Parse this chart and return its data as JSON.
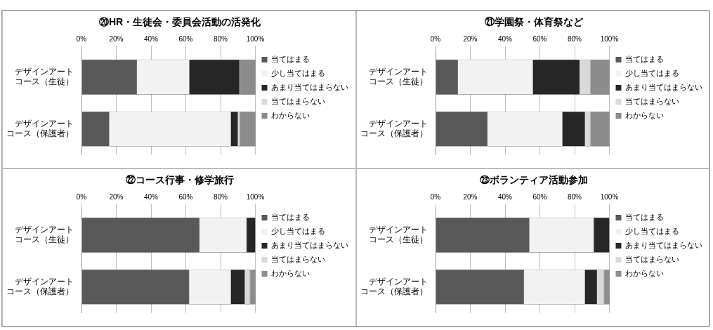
{
  "chart_data": [
    {
      "type": "bar",
      "orientation": "horizontal",
      "stacked": true,
      "title": "⑳HR・生徒会・委員会活動の活発化",
      "categories": [
        "デザインアートコース（生徒）",
        "デザインアートコース（保護者）"
      ],
      "series": [
        {
          "name": "当てはまる",
          "color": "#595959",
          "values": [
            32,
            16
          ]
        },
        {
          "name": "少し当てはまる",
          "color": "#f2f2f2",
          "values": [
            30,
            70
          ]
        },
        {
          "name": "あまり当てはまらない",
          "color": "#262626",
          "values": [
            29,
            4
          ]
        },
        {
          "name": "当てはまらない",
          "color": "#d9d9d9",
          "values": [
            0,
            1
          ]
        },
        {
          "name": "わからない",
          "color": "#8c8c8c",
          "values": [
            9,
            9
          ]
        }
      ],
      "xlim": [
        0,
        100
      ],
      "xticks": [
        {
          "value": 0,
          "label": "0%"
        },
        {
          "value": 20,
          "label": "20%"
        },
        {
          "value": 40,
          "label": "40%"
        },
        {
          "value": 60,
          "label": "60%"
        },
        {
          "value": 80,
          "label": "80%"
        },
        {
          "value": 100,
          "label": "100%"
        }
      ],
      "grid": "x",
      "legend": "right"
    },
    {
      "type": "bar",
      "orientation": "horizontal",
      "stacked": true,
      "title": "㉑学園祭・体育祭など",
      "categories": [
        "デザインアートコース（生徒）",
        "デザインアートコース（保護者）"
      ],
      "series": [
        {
          "name": "当てはまる",
          "color": "#595959",
          "values": [
            13,
            30
          ]
        },
        {
          "name": "少し当てはまる",
          "color": "#f2f2f2",
          "values": [
            43,
            43
          ]
        },
        {
          "name": "あまり当てはまらない",
          "color": "#262626",
          "values": [
            27,
            13
          ]
        },
        {
          "name": "当てはまらない",
          "color": "#d9d9d9",
          "values": [
            6,
            3
          ]
        },
        {
          "name": "わからない",
          "color": "#8c8c8c",
          "values": [
            11,
            11
          ]
        }
      ],
      "xlim": [
        0,
        100
      ],
      "xticks": [
        {
          "value": 0,
          "label": "0%"
        },
        {
          "value": 20,
          "label": "20%"
        },
        {
          "value": 40,
          "label": "40%"
        },
        {
          "value": 60,
          "label": "60%"
        },
        {
          "value": 80,
          "label": "80%"
        },
        {
          "value": 100,
          "label": "100%"
        }
      ],
      "grid": "x",
      "legend": "right"
    },
    {
      "type": "bar",
      "orientation": "horizontal",
      "stacked": true,
      "title": "㉒コース行事・修学旅行",
      "categories": [
        "デザインアートコース（生徒）",
        "デザインアートコース（保護者）"
      ],
      "series": [
        {
          "name": "当てはまる",
          "color": "#595959",
          "values": [
            68,
            62
          ]
        },
        {
          "name": "少し当てはまる",
          "color": "#f2f2f2",
          "values": [
            27,
            24
          ]
        },
        {
          "name": "あまり当てはまらない",
          "color": "#262626",
          "values": [
            5,
            8
          ]
        },
        {
          "name": "当てはまらない",
          "color": "#d9d9d9",
          "values": [
            0,
            3
          ]
        },
        {
          "name": "わからない",
          "color": "#8c8c8c",
          "values": [
            0,
            3
          ]
        }
      ],
      "xlim": [
        0,
        100
      ],
      "xticks": [
        {
          "value": 0,
          "label": "0%"
        },
        {
          "value": 20,
          "label": "20%"
        },
        {
          "value": 40,
          "label": "40%"
        },
        {
          "value": 60,
          "label": "60%"
        },
        {
          "value": 80,
          "label": "80%"
        },
        {
          "value": 100,
          "label": "100%"
        }
      ],
      "grid": "x",
      "legend": "right"
    },
    {
      "type": "bar",
      "orientation": "horizontal",
      "stacked": true,
      "title": "㉓ボランティア活動参加",
      "categories": [
        "デザインアートコース（生徒）",
        "デザインアートコース（保護者）"
      ],
      "series": [
        {
          "name": "当てはまる",
          "color": "#595959",
          "values": [
            54,
            51
          ]
        },
        {
          "name": "少し当てはまる",
          "color": "#f2f2f2",
          "values": [
            37,
            35
          ]
        },
        {
          "name": "あまり当てはまらない",
          "color": "#262626",
          "values": [
            9,
            7
          ]
        },
        {
          "name": "当てはまらない",
          "color": "#d9d9d9",
          "values": [
            0,
            4
          ]
        },
        {
          "name": "わからない",
          "color": "#8c8c8c",
          "values": [
            0,
            3
          ]
        }
      ],
      "xlim": [
        0,
        100
      ],
      "xticks": [
        {
          "value": 0,
          "label": "0%"
        },
        {
          "value": 20,
          "label": "20%"
        },
        {
          "value": 40,
          "label": "40%"
        },
        {
          "value": 60,
          "label": "60%"
        },
        {
          "value": 80,
          "label": "80%"
        },
        {
          "value": 100,
          "label": "100%"
        }
      ],
      "grid": "x",
      "legend": "right"
    }
  ]
}
